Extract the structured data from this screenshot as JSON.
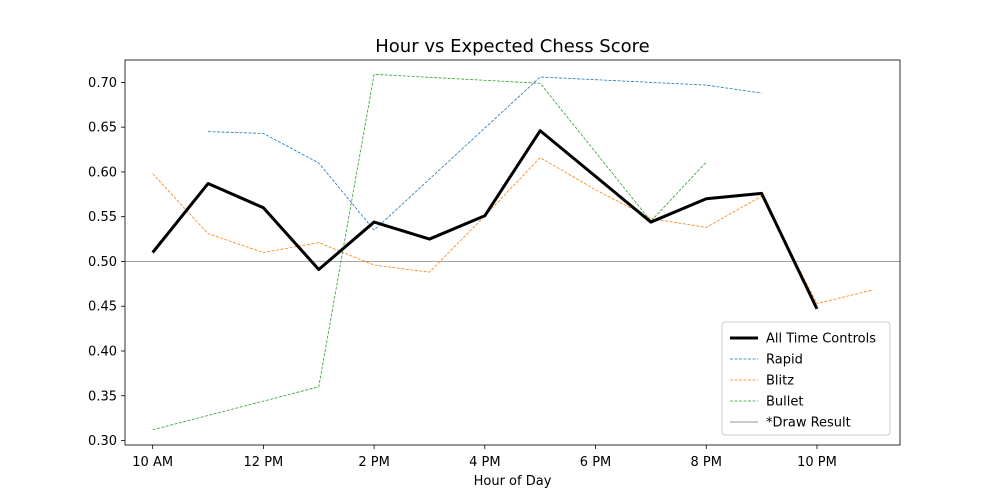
{
  "chart_data": {
    "type": "line",
    "title": "Hour vs Expected Chess Score",
    "xlabel": "Hour of Day",
    "ylabel": "",
    "xlim": [
      9.5,
      23.5
    ],
    "ylim": [
      0.295,
      0.725
    ],
    "x_ticks": [
      {
        "value": 10,
        "label": "10 AM"
      },
      {
        "value": 12,
        "label": "12 PM"
      },
      {
        "value": 14,
        "label": "2 PM"
      },
      {
        "value": 16,
        "label": "4 PM"
      },
      {
        "value": 18,
        "label": "6 PM"
      },
      {
        "value": 20,
        "label": "8 PM"
      },
      {
        "value": 22,
        "label": "10 PM"
      }
    ],
    "y_ticks": [
      {
        "value": 0.3,
        "label": "0.30"
      },
      {
        "value": 0.35,
        "label": "0.35"
      },
      {
        "value": 0.4,
        "label": "0.40"
      },
      {
        "value": 0.45,
        "label": "0.45"
      },
      {
        "value": 0.5,
        "label": "0.50"
      },
      {
        "value": 0.55,
        "label": "0.55"
      },
      {
        "value": 0.6,
        "label": "0.60"
      },
      {
        "value": 0.65,
        "label": "0.65"
      },
      {
        "value": 0.7,
        "label": "0.70"
      }
    ],
    "grid": false,
    "legend_position": "bottom-right",
    "series": [
      {
        "name": "All Time Controls",
        "color": "#000000",
        "style": "solid-thick",
        "x": [
          10,
          11,
          12,
          13,
          14,
          15,
          16,
          17,
          18,
          19,
          20,
          21,
          22
        ],
        "y": [
          0.51,
          0.587,
          0.56,
          0.491,
          0.544,
          0.525,
          0.551,
          0.646,
          0.595,
          0.544,
          0.57,
          0.576,
          0.447
        ]
      },
      {
        "name": "Rapid",
        "color": "#1f77b4",
        "style": "dashed",
        "x": [
          11,
          12,
          13,
          14,
          17,
          20,
          21
        ],
        "y": [
          0.645,
          0.643,
          0.61,
          0.535,
          0.706,
          0.697,
          0.688
        ]
      },
      {
        "name": "Blitz",
        "color": "#ff7f0e",
        "style": "dashed",
        "x": [
          10,
          11,
          12,
          13,
          14,
          15,
          16,
          17,
          18,
          19,
          20,
          21,
          22,
          23
        ],
        "y": [
          0.598,
          0.531,
          0.51,
          0.521,
          0.496,
          0.488,
          0.551,
          0.616,
          0.58,
          0.548,
          0.538,
          0.573,
          0.453,
          0.468
        ]
      },
      {
        "name": "Bullet",
        "color": "#2ca02c",
        "style": "dashed",
        "x": [
          10,
          13,
          14,
          17,
          19,
          20
        ],
        "y": [
          0.312,
          0.36,
          0.709,
          0.699,
          0.545,
          0.611
        ]
      }
    ],
    "reference_line": {
      "name": "*Draw Result",
      "y": 0.5,
      "color": "#999999"
    }
  }
}
